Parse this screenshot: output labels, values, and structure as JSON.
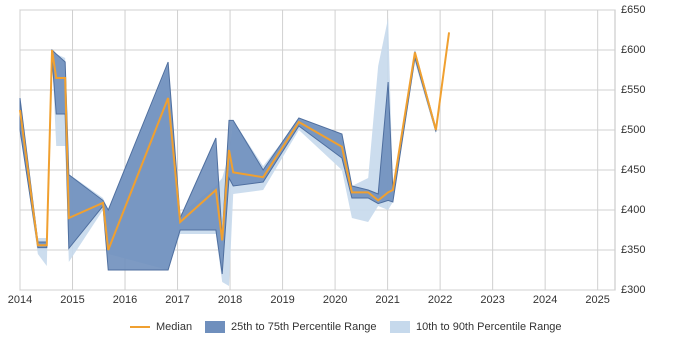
{
  "chart_data": {
    "type": "percentile-band-line",
    "x": [
      2014.0,
      2014.34,
      2014.51,
      2014.61,
      2014.69,
      2014.86,
      2014.93,
      2015.58,
      2015.68,
      2016.82,
      2017.05,
      2017.73,
      2017.85,
      2017.98,
      2018.06,
      2018.63,
      2019.31,
      2020.13,
      2020.32,
      2020.63,
      2020.82,
      2021.01,
      2021.1,
      2021.52,
      2021.92,
      2022.17
    ],
    "series": [
      {
        "name": "10th to 90th Percentile Range",
        "color": "#c6d9ec",
        "kind": "band",
        "low": [
          500,
          345,
          330,
          590,
          480,
          480,
          335,
          400,
          345,
          325,
          370,
          370,
          310,
          305,
          420,
          425,
          500,
          450,
          390,
          385,
          405,
          400,
          410,
          585,
          495,
          null
        ],
        "high": [
          540,
          365,
          365,
          600,
          595,
          590,
          445,
          415,
          400,
          580,
          395,
          430,
          440,
          470,
          512,
          455,
          512,
          495,
          430,
          440,
          580,
          640,
          425,
          600,
          505,
          null
        ]
      },
      {
        "name": "25th to 75th Percentile Range",
        "color": "#6f8fbd",
        "kind": "band",
        "low": [
          500,
          353,
          353,
          590,
          520,
          520,
          352,
          405,
          325,
          325,
          375,
          375,
          320,
          440,
          430,
          435,
          505,
          465,
          415,
          415,
          408,
          412,
          410,
          590,
          498,
          null
        ],
        "high": [
          540,
          360,
          360,
          600,
          595,
          585,
          444,
          412,
          400,
          585,
          390,
          490,
          365,
          512,
          512,
          450,
          515,
          495,
          430,
          425,
          420,
          560,
          425,
          598,
          502,
          null
        ]
      },
      {
        "name": "Median",
        "color": "#f0a030",
        "kind": "line",
        "values": [
          525,
          356,
          356,
          600,
          565,
          565,
          390,
          409,
          350,
          540,
          385,
          425,
          362,
          475,
          447,
          441,
          510,
          479,
          422,
          422,
          412,
          422,
          425,
          597,
          500,
          622
        ]
      }
    ],
    "xlim": [
      2014,
      2025.33
    ],
    "xticks": [
      2014,
      2015,
      2016,
      2017,
      2018,
      2019,
      2020,
      2021,
      2022,
      2023,
      2024,
      2025
    ],
    "ylim": [
      300,
      650
    ],
    "yticks": [
      {
        "value": 300,
        "label": "£300"
      },
      {
        "value": 350,
        "label": "£350"
      },
      {
        "value": 400,
        "label": "£400"
      },
      {
        "value": 450,
        "label": "£450"
      },
      {
        "value": 500,
        "label": "£500"
      },
      {
        "value": 550,
        "label": "£550"
      },
      {
        "value": 600,
        "label": "£600"
      },
      {
        "value": 650,
        "label": "£650"
      }
    ],
    "grid": true,
    "legend": "bottom"
  }
}
